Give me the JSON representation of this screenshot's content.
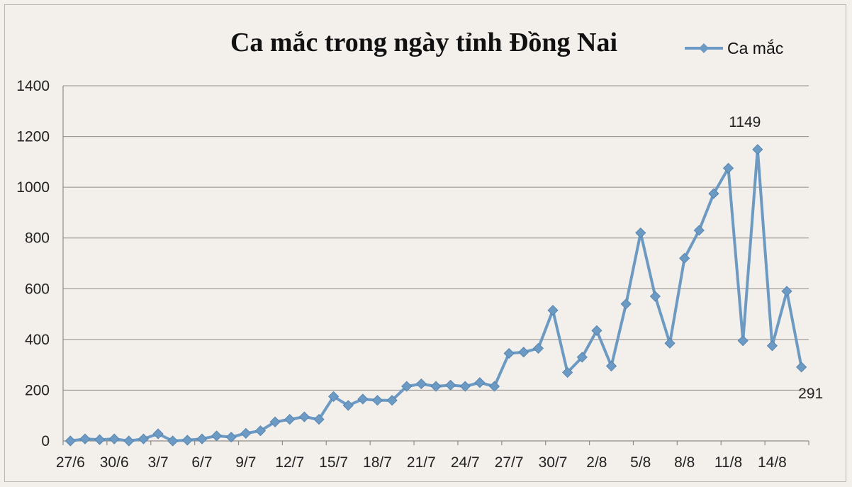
{
  "chart_data": {
    "type": "line",
    "title": "Ca mắc trong ngày tỉnh Đồng Nai",
    "xlabel": "",
    "ylabel": "",
    "ylim": [
      0,
      1400
    ],
    "yticks": [
      0,
      200,
      400,
      600,
      800,
      1000,
      1200,
      1400
    ],
    "grid": "horizontal",
    "legend_position": "top-right",
    "color": "#6b9ac4",
    "categories": [
      "27/6",
      "28/6",
      "29/6",
      "30/6",
      "1/7",
      "2/7",
      "3/7",
      "4/7",
      "5/7",
      "6/7",
      "7/7",
      "8/7",
      "9/7",
      "10/7",
      "11/7",
      "12/7",
      "13/7",
      "14/7",
      "15/7",
      "16/7",
      "17/7",
      "18/7",
      "19/7",
      "20/7",
      "21/7",
      "22/7",
      "23/7",
      "24/7",
      "25/7",
      "26/7",
      "27/7",
      "28/7",
      "29/7",
      "30/7",
      "31/7",
      "1/8",
      "2/8",
      "3/8",
      "4/8",
      "5/8",
      "6/8",
      "7/8",
      "8/8",
      "9/8",
      "10/8",
      "11/8",
      "12/8",
      "13/8",
      "14/8",
      "15/8",
      "16/8"
    ],
    "tick_labels": [
      "27/6",
      "30/6",
      "3/7",
      "6/7",
      "9/7",
      "12/7",
      "15/7",
      "18/7",
      "21/7",
      "24/7",
      "27/7",
      "30/7",
      "2/8",
      "5/8",
      "8/8",
      "11/8",
      "14/8"
    ],
    "series": [
      {
        "name": "Ca mắc",
        "values": [
          0,
          8,
          5,
          8,
          0,
          8,
          28,
          0,
          3,
          8,
          20,
          15,
          30,
          40,
          75,
          85,
          95,
          85,
          175,
          140,
          165,
          160,
          160,
          215,
          225,
          215,
          220,
          215,
          230,
          215,
          345,
          350,
          365,
          515,
          270,
          330,
          435,
          295,
          540,
          820,
          570,
          385,
          720,
          830,
          975,
          1075,
          395,
          1149,
          375,
          590,
          291
        ]
      }
    ],
    "data_labels": [
      {
        "index": 47,
        "text": "1149"
      },
      {
        "index": 50,
        "text": "291"
      }
    ]
  }
}
